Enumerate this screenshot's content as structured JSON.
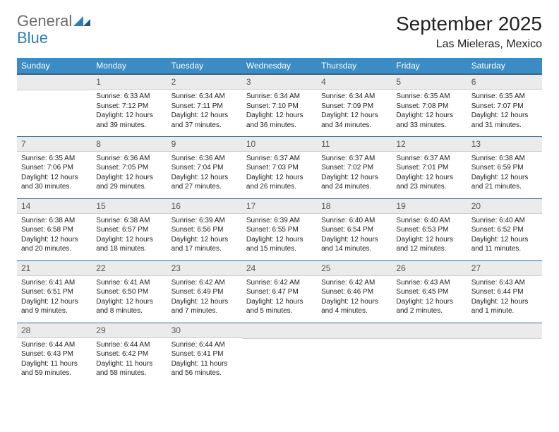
{
  "logo": {
    "general": "General",
    "blue": "Blue"
  },
  "header": {
    "month_title": "September 2025",
    "location": "Las Mieleras, Mexico"
  },
  "colors": {
    "header_bg": "#3b8bc4",
    "header_border": "#2a6a9a",
    "day_num_bg": "#ebebeb",
    "logo_blue": "#2a7fba",
    "logo_gray": "#6b6b6b"
  },
  "dayNames": [
    "Sunday",
    "Monday",
    "Tuesday",
    "Wednesday",
    "Thursday",
    "Friday",
    "Saturday"
  ],
  "weeks": [
    [
      null,
      {
        "n": "1",
        "sr": "6:33 AM",
        "ss": "7:12 PM",
        "dl": "12 hours and 39 minutes."
      },
      {
        "n": "2",
        "sr": "6:34 AM",
        "ss": "7:11 PM",
        "dl": "12 hours and 37 minutes."
      },
      {
        "n": "3",
        "sr": "6:34 AM",
        "ss": "7:10 PM",
        "dl": "12 hours and 36 minutes."
      },
      {
        "n": "4",
        "sr": "6:34 AM",
        "ss": "7:09 PM",
        "dl": "12 hours and 34 minutes."
      },
      {
        "n": "5",
        "sr": "6:35 AM",
        "ss": "7:08 PM",
        "dl": "12 hours and 33 minutes."
      },
      {
        "n": "6",
        "sr": "6:35 AM",
        "ss": "7:07 PM",
        "dl": "12 hours and 31 minutes."
      }
    ],
    [
      {
        "n": "7",
        "sr": "6:35 AM",
        "ss": "7:06 PM",
        "dl": "12 hours and 30 minutes."
      },
      {
        "n": "8",
        "sr": "6:36 AM",
        "ss": "7:05 PM",
        "dl": "12 hours and 29 minutes."
      },
      {
        "n": "9",
        "sr": "6:36 AM",
        "ss": "7:04 PM",
        "dl": "12 hours and 27 minutes."
      },
      {
        "n": "10",
        "sr": "6:37 AM",
        "ss": "7:03 PM",
        "dl": "12 hours and 26 minutes."
      },
      {
        "n": "11",
        "sr": "6:37 AM",
        "ss": "7:02 PM",
        "dl": "12 hours and 24 minutes."
      },
      {
        "n": "12",
        "sr": "6:37 AM",
        "ss": "7:01 PM",
        "dl": "12 hours and 23 minutes."
      },
      {
        "n": "13",
        "sr": "6:38 AM",
        "ss": "6:59 PM",
        "dl": "12 hours and 21 minutes."
      }
    ],
    [
      {
        "n": "14",
        "sr": "6:38 AM",
        "ss": "6:58 PM",
        "dl": "12 hours and 20 minutes."
      },
      {
        "n": "15",
        "sr": "6:38 AM",
        "ss": "6:57 PM",
        "dl": "12 hours and 18 minutes."
      },
      {
        "n": "16",
        "sr": "6:39 AM",
        "ss": "6:56 PM",
        "dl": "12 hours and 17 minutes."
      },
      {
        "n": "17",
        "sr": "6:39 AM",
        "ss": "6:55 PM",
        "dl": "12 hours and 15 minutes."
      },
      {
        "n": "18",
        "sr": "6:40 AM",
        "ss": "6:54 PM",
        "dl": "12 hours and 14 minutes."
      },
      {
        "n": "19",
        "sr": "6:40 AM",
        "ss": "6:53 PM",
        "dl": "12 hours and 12 minutes."
      },
      {
        "n": "20",
        "sr": "6:40 AM",
        "ss": "6:52 PM",
        "dl": "12 hours and 11 minutes."
      }
    ],
    [
      {
        "n": "21",
        "sr": "6:41 AM",
        "ss": "6:51 PM",
        "dl": "12 hours and 9 minutes."
      },
      {
        "n": "22",
        "sr": "6:41 AM",
        "ss": "6:50 PM",
        "dl": "12 hours and 8 minutes."
      },
      {
        "n": "23",
        "sr": "6:42 AM",
        "ss": "6:49 PM",
        "dl": "12 hours and 7 minutes."
      },
      {
        "n": "24",
        "sr": "6:42 AM",
        "ss": "6:47 PM",
        "dl": "12 hours and 5 minutes."
      },
      {
        "n": "25",
        "sr": "6:42 AM",
        "ss": "6:46 PM",
        "dl": "12 hours and 4 minutes."
      },
      {
        "n": "26",
        "sr": "6:43 AM",
        "ss": "6:45 PM",
        "dl": "12 hours and 2 minutes."
      },
      {
        "n": "27",
        "sr": "6:43 AM",
        "ss": "6:44 PM",
        "dl": "12 hours and 1 minute."
      }
    ],
    [
      {
        "n": "28",
        "sr": "6:44 AM",
        "ss": "6:43 PM",
        "dl": "11 hours and 59 minutes."
      },
      {
        "n": "29",
        "sr": "6:44 AM",
        "ss": "6:42 PM",
        "dl": "11 hours and 58 minutes."
      },
      {
        "n": "30",
        "sr": "6:44 AM",
        "ss": "6:41 PM",
        "dl": "11 hours and 56 minutes."
      },
      null,
      null,
      null,
      null
    ]
  ],
  "labels": {
    "sunrise": "Sunrise: ",
    "sunset": "Sunset: ",
    "daylight": "Daylight: "
  }
}
